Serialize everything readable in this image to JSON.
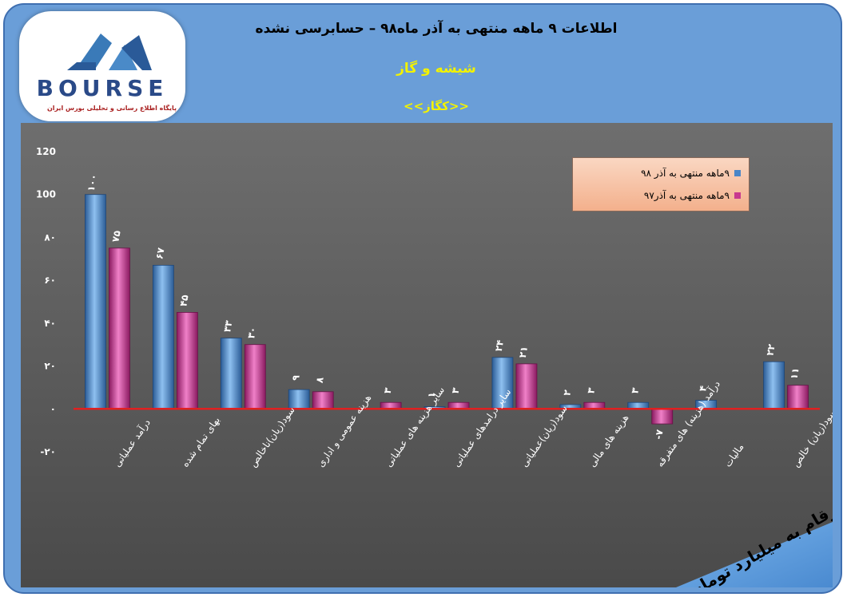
{
  "header": {
    "title": "اطلاعات ۹ ماهه منتهی به آذر ماه۹۸ – حسابرسی نشده",
    "subtitle": "شیشه و گاز",
    "company": "<<کگاز>>"
  },
  "logo": {
    "wordmark": "BOURSE",
    "tagline": "پایگاه اطلاع رسانی و تحلیلی بورس ایران"
  },
  "units_note": "ارقام به میلیارد تومان",
  "colors": {
    "series_98": "#4a86c8",
    "series_97": "#c8388f",
    "zero_line": "#e02020",
    "plot_bg": "#5a5a5a",
    "frame": "#6a9ed8"
  },
  "chart_data": {
    "type": "bar",
    "categories": [
      "درآمد عملیاتی",
      "بهای تمام شده",
      "سود(زیان)ناخالص",
      "هزینه عمومی و اداری",
      "سایر هزینه های عملیاتی",
      "سایر درامدهای عملیاتی",
      "سود(زیان)عملیاتی",
      "هزینه های مالی",
      "درآمد (هزینه) های متفرقه",
      "مالیات",
      "سود(زیان) خالص"
    ],
    "series": [
      {
        "name": "۹ماهه منتهی به آذر ۹۸",
        "values": [
          100,
          67,
          33,
          9,
          0,
          1,
          24,
          2,
          3,
          4,
          22
        ],
        "labels": [
          "۱۰۰",
          "۶۷",
          "۳۳",
          "۹",
          "",
          "۱",
          "۲۴",
          "۲",
          "۳",
          "۴",
          "۲۲"
        ]
      },
      {
        "name": "۹ماهه منتهی به آذر۹۷",
        "values": [
          75,
          45,
          30,
          8,
          3,
          3,
          21,
          3,
          -7,
          0,
          11
        ],
        "labels": [
          "۷۵",
          "۴۵",
          "۳۰",
          "۸",
          "۳",
          "۳",
          "۲۱",
          "۳",
          "-۷",
          "",
          "۱۱"
        ]
      }
    ],
    "yticks": [
      "120",
      "100",
      "۸۰",
      "۶۰",
      "۴۰",
      "۲۰",
      "۰",
      "-۲۰"
    ],
    "ytick_values": [
      120,
      100,
      80,
      60,
      40,
      20,
      0,
      -20
    ],
    "ylim": [
      -20,
      120
    ],
    "grid": false,
    "legend_position": "top-right"
  }
}
